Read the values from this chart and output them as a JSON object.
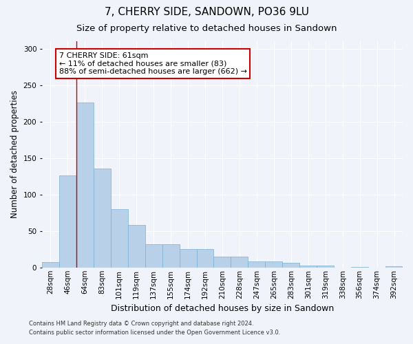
{
  "title": "7, CHERRY SIDE, SANDOWN, PO36 9LU",
  "subtitle": "Size of property relative to detached houses in Sandown",
  "xlabel": "Distribution of detached houses by size in Sandown",
  "ylabel": "Number of detached properties",
  "footer_line1": "Contains HM Land Registry data © Crown copyright and database right 2024.",
  "footer_line2": "Contains public sector information licensed under the Open Government Licence v3.0.",
  "categories": [
    "28sqm",
    "46sqm",
    "64sqm",
    "83sqm",
    "101sqm",
    "119sqm",
    "137sqm",
    "155sqm",
    "174sqm",
    "192sqm",
    "210sqm",
    "228sqm",
    "247sqm",
    "265sqm",
    "283sqm",
    "301sqm",
    "319sqm",
    "338sqm",
    "356sqm",
    "374sqm",
    "392sqm"
  ],
  "values": [
    7,
    126,
    226,
    136,
    80,
    58,
    32,
    32,
    25,
    25,
    15,
    15,
    8,
    8,
    6,
    3,
    3,
    0,
    1,
    0,
    2
  ],
  "bar_color": "#b8d0e8",
  "bar_edge_color": "#7aafd4",
  "annotation_box_text": "7 CHERRY SIDE: 61sqm\n← 11% of detached houses are smaller (83)\n88% of semi-detached houses are larger (662) →",
  "annotation_box_color": "#ffffff",
  "annotation_box_edge_color": "#cc0000",
  "vline_color": "#cc0000",
  "ylim": [
    0,
    310
  ],
  "yticks": [
    0,
    50,
    100,
    150,
    200,
    250,
    300
  ],
  "bg_color": "#f0f4fa",
  "plot_bg_color": "#f0f4fa",
  "title_fontsize": 11,
  "subtitle_fontsize": 9.5,
  "xlabel_fontsize": 9,
  "ylabel_fontsize": 8.5,
  "tick_fontsize": 7.5,
  "annot_fontsize": 8,
  "footer_fontsize": 6
}
